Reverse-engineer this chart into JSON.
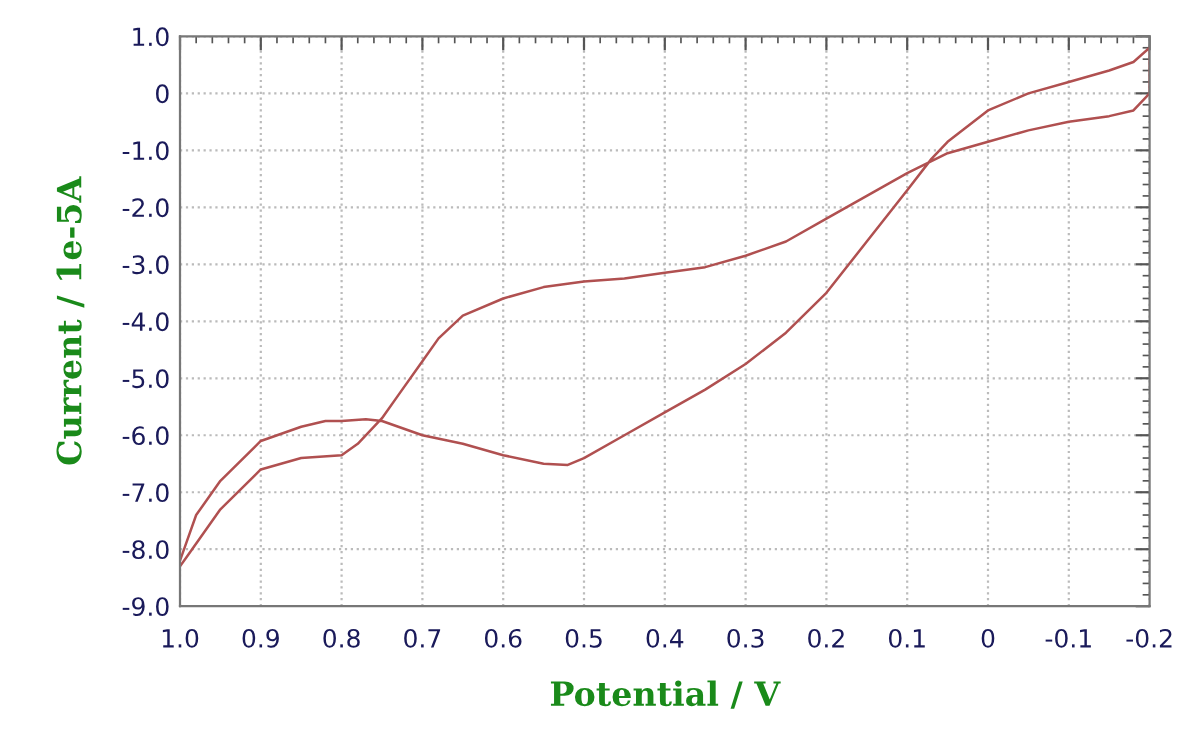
{
  "chart_data": {
    "type": "line",
    "xlabel": "Potential / V",
    "ylabel": "Current / 1e-5A",
    "xlim": [
      1.0,
      -0.2
    ],
    "ylim": [
      -9.0,
      1.0
    ],
    "xticks": [
      {
        "value": 1.0,
        "label": "1.0"
      },
      {
        "value": 0.9,
        "label": "0.9"
      },
      {
        "value": 0.8,
        "label": "0.8"
      },
      {
        "value": 0.7,
        "label": "0.7"
      },
      {
        "value": 0.6,
        "label": "0.6"
      },
      {
        "value": 0.5,
        "label": "0.5"
      },
      {
        "value": 0.4,
        "label": "0.4"
      },
      {
        "value": 0.3,
        "label": "0.3"
      },
      {
        "value": 0.2,
        "label": "0.2"
      },
      {
        "value": 0.1,
        "label": "0.1"
      },
      {
        "value": 0,
        "label": "0"
      },
      {
        "value": -0.1,
        "label": "-0.1"
      },
      {
        "value": -0.2,
        "label": "-0.2"
      }
    ],
    "yticks": [
      {
        "value": 1.0,
        "label": "1.0"
      },
      {
        "value": 0,
        "label": "0"
      },
      {
        "value": -1.0,
        "label": "-1.0"
      },
      {
        "value": -2.0,
        "label": "-2.0"
      },
      {
        "value": -3.0,
        "label": "-3.0"
      },
      {
        "value": -4.0,
        "label": "-4.0"
      },
      {
        "value": -5.0,
        "label": "-5.0"
      },
      {
        "value": -6.0,
        "label": "-6.0"
      },
      {
        "value": -7.0,
        "label": "-7.0"
      },
      {
        "value": -8.0,
        "label": "-8.0"
      },
      {
        "value": -9.0,
        "label": "-9.0"
      }
    ],
    "grid": true,
    "marker": "none",
    "line_style": "solid",
    "series": [
      {
        "color": "#b05050",
        "x": [
          1.0,
          0.98,
          0.95,
          0.9,
          0.85,
          0.82,
          0.8,
          0.77,
          0.75,
          0.7,
          0.65,
          0.6,
          0.55,
          0.52,
          0.5,
          0.45,
          0.4,
          0.35,
          0.3,
          0.25,
          0.2,
          0.15,
          0.1,
          0.07,
          0.05,
          0.0,
          -0.05,
          -0.1,
          -0.15,
          -0.18,
          -0.2,
          -0.2,
          -0.18,
          -0.15,
          -0.1,
          -0.05,
          0.0,
          0.05,
          0.1,
          0.15,
          0.2,
          0.25,
          0.3,
          0.35,
          0.4,
          0.45,
          0.5,
          0.55,
          0.6,
          0.65,
          0.68,
          0.7,
          0.73,
          0.75,
          0.78,
          0.8,
          0.85,
          0.9,
          0.95,
          0.99,
          1.0
        ],
        "values": [
          -8.2,
          -7.4,
          -6.8,
          -6.1,
          -5.85,
          -5.75,
          -5.75,
          -5.72,
          -5.75,
          -6.0,
          -6.15,
          -6.35,
          -6.5,
          -6.52,
          -6.4,
          -6.0,
          -5.6,
          -5.2,
          -4.75,
          -4.2,
          -3.5,
          -2.6,
          -1.7,
          -1.15,
          -0.85,
          -0.3,
          0.0,
          0.2,
          0.4,
          0.55,
          0.8,
          0.0,
          -0.3,
          -0.4,
          -0.5,
          -0.65,
          -0.85,
          -1.05,
          -1.4,
          -1.8,
          -2.2,
          -2.6,
          -2.85,
          -3.05,
          -3.15,
          -3.25,
          -3.3,
          -3.4,
          -3.6,
          -3.9,
          -4.3,
          -4.7,
          -5.3,
          -5.7,
          -6.15,
          -6.35,
          -6.4,
          -6.6,
          -7.3,
          -8.1,
          -8.3
        ]
      }
    ]
  }
}
